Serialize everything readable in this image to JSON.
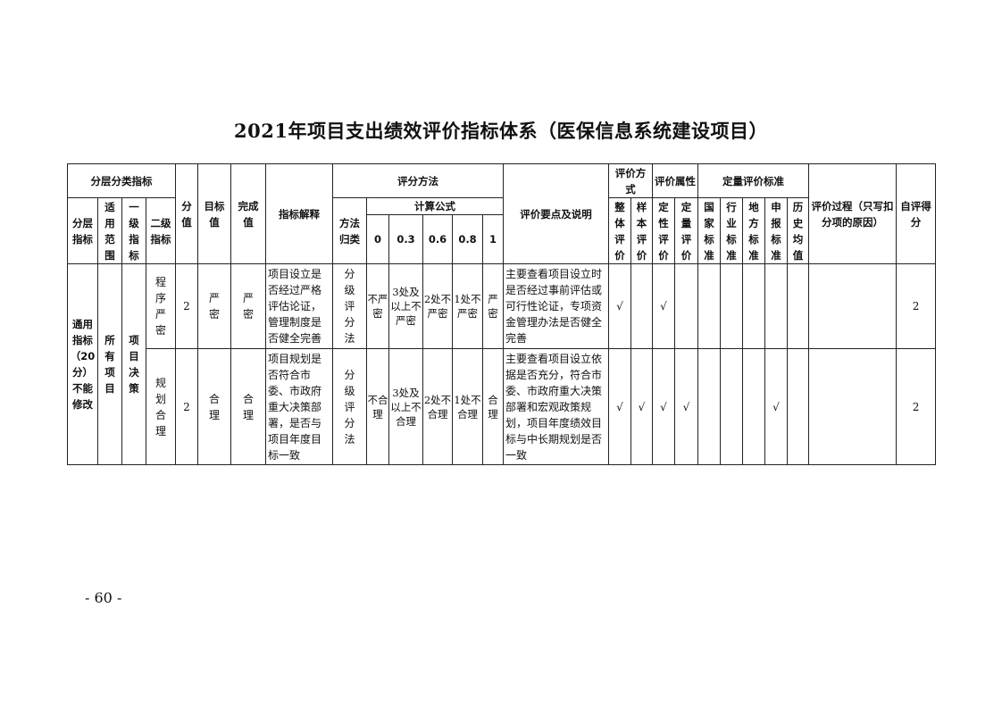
{
  "title": "2021年项目支出绩效评价指标体系（医保信息系统建设项目）",
  "header": {
    "group": "分层分类指标",
    "layer": "分层指标",
    "scope": "适用范围",
    "level1": "一级指标",
    "level2": "二级指标",
    "score": "分值",
    "target": "目标值",
    "actual": "完成值",
    "explain": "指标解释",
    "method": "评分方法",
    "method_type": "方法归类",
    "formula": "计算公式",
    "formula_cols": [
      "0",
      "0.3",
      "0.6",
      "0.8",
      "1"
    ],
    "points": "评价要点及说明",
    "eval_mode": "评价方式",
    "whole": "整体评价",
    "sample": "样本评价",
    "eval_attr": "评价属性",
    "qual": "定性评价",
    "quant": "定量评价",
    "quant_std": "定量评价标准",
    "national": "国家标准",
    "industry": "行业标准",
    "local": "地方标准",
    "declared": "申报标准",
    "history": "历史均值",
    "process": "评价过程（只写扣分项的原因）",
    "self_score": "自评得分"
  },
  "group_cells": {
    "layer": "通用指标（20分）不能修改",
    "scope": "所有项目",
    "level1": "项目决策"
  },
  "rows": [
    {
      "level2": "程序严密",
      "score": "2",
      "target": "严密",
      "actual": "严密",
      "explain": "项目设立是否经过严格评估论证，管理制度是否健全完善",
      "method_type": "分级评分法",
      "f": [
        "不严密",
        "3处及以上不严密",
        "2处不严密",
        "1处不严密",
        "严密"
      ],
      "points": "主要查看项目设立时是否经过事前评估或可行性论证，专项资金管理办法是否健全完善",
      "marks": [
        "√",
        "",
        "√",
        "",
        "",
        "",
        "",
        "",
        ""
      ],
      "process": "",
      "self_score": "2"
    },
    {
      "level2": "规划合理",
      "score": "2",
      "target": "合理",
      "actual": "合理",
      "explain": "项目规划是否符合市委、市政府重大决策部署，是否与项目年度目标一致",
      "method_type": "分级评分法",
      "f": [
        "不合理",
        "3处及以上不合理",
        "2处不合理",
        "1处不合理",
        "合理"
      ],
      "points": "主要查看项目设立依据是否充分，符合市委、市政府重大决策部署和宏观政策规划，项目年度绩效目标与中长期规划是否一致",
      "marks": [
        "√",
        "√",
        "√",
        "√",
        "",
        "",
        "",
        "√",
        ""
      ],
      "process": "",
      "self_score": "2"
    }
  ],
  "page_number": "- 60 -"
}
